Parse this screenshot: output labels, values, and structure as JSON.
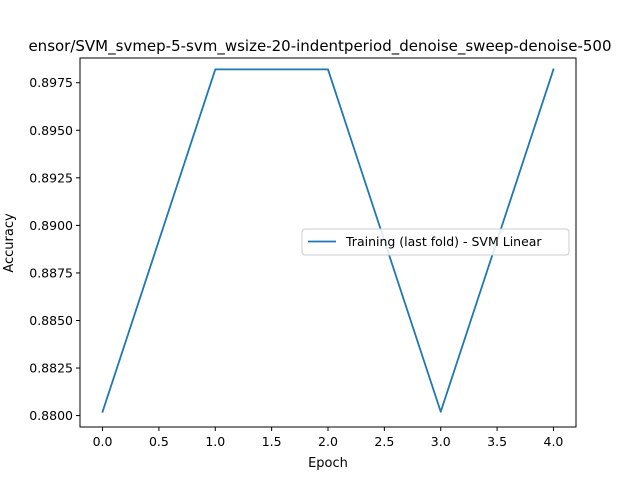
{
  "chart_data": {
    "type": "line",
    "title": "ensor/SVM_svmep-5-svm_wsize-20-indentperiod_denoise_sweep-denoise-500",
    "xlabel": "Epoch",
    "ylabel": "Accuracy",
    "xlim": [
      -0.2,
      4.2
    ],
    "ylim": [
      0.8794,
      0.8988
    ],
    "x_ticks": [
      0.0,
      0.5,
      1.0,
      1.5,
      2.0,
      2.5,
      3.0,
      3.5,
      4.0
    ],
    "x_tick_labels": [
      "0.0",
      "0.5",
      "1.0",
      "1.5",
      "2.0",
      "2.5",
      "3.0",
      "3.5",
      "4.0"
    ],
    "y_ticks": [
      0.88,
      0.8825,
      0.885,
      0.8875,
      0.89,
      0.8925,
      0.895,
      0.8975
    ],
    "y_tick_labels": [
      "0.8800",
      "0.8825",
      "0.8850",
      "0.8875",
      "0.8900",
      "0.8925",
      "0.8950",
      "0.8975"
    ],
    "grid": false,
    "legend_position": "center-right",
    "series": [
      {
        "name": "Training (last fold) - SVM Linear",
        "color": "#1f77b4",
        "x": [
          0,
          1,
          2,
          3,
          4
        ],
        "values": [
          0.8802,
          0.8982,
          0.8982,
          0.8802,
          0.8982
        ]
      }
    ]
  }
}
